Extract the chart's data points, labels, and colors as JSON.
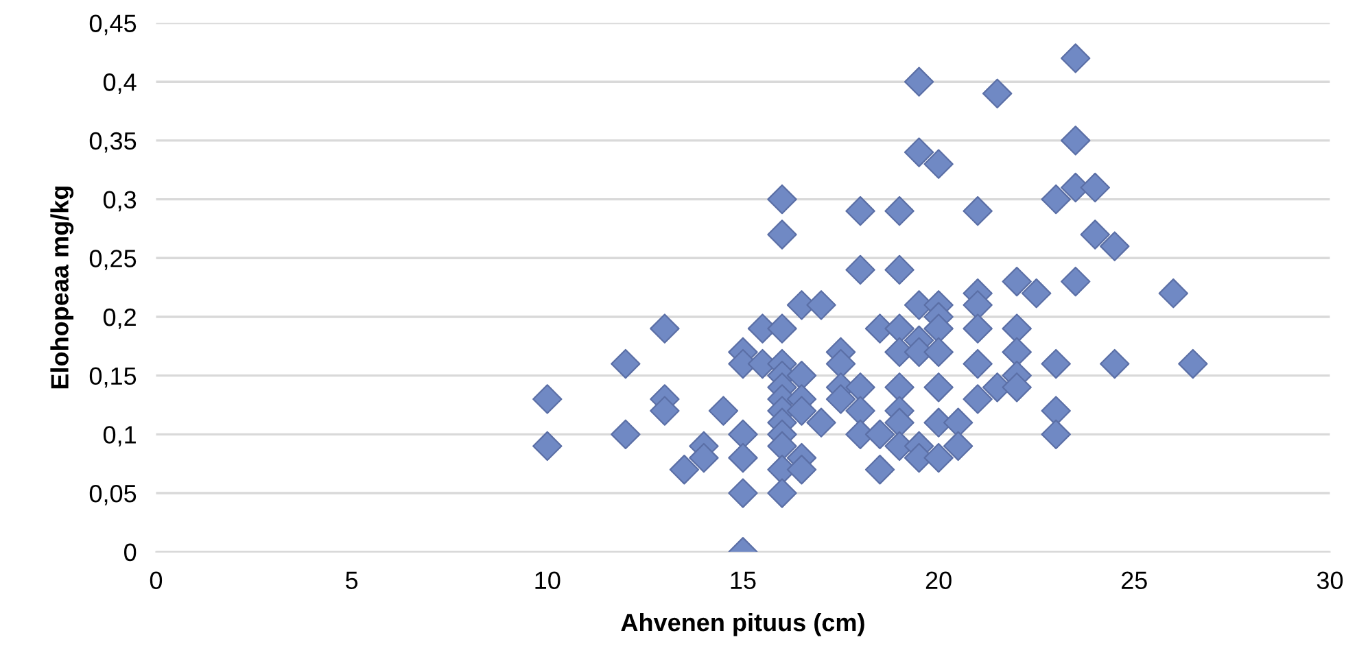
{
  "chart_data": {
    "type": "scatter",
    "xlabel": "Ahvenen pituus (cm)",
    "ylabel": "Elohopeaa mg/kg",
    "series": [
      {
        "color": "#7089c4",
        "x": [
          10,
          10,
          12,
          12,
          13,
          13,
          13,
          13.5,
          14,
          14,
          14.5,
          15,
          15,
          15,
          15,
          15,
          15,
          15.5,
          15.5,
          16,
          16,
          16,
          16,
          16,
          16,
          16,
          16,
          16,
          16,
          16,
          16,
          16,
          16.5,
          16.5,
          16.5,
          16.5,
          16.5,
          16.5,
          17,
          17,
          17.5,
          17.5,
          17.5,
          17.5,
          18,
          18,
          18,
          18,
          18,
          18.5,
          18.5,
          18.5,
          19,
          19,
          19,
          19,
          19,
          19,
          19,
          19,
          19.5,
          19.5,
          19.5,
          19.5,
          19.5,
          19.5,
          19.5,
          20,
          20,
          20,
          20,
          20,
          20,
          20,
          20,
          20.5,
          20.5,
          21,
          21,
          21,
          21,
          21,
          21,
          21.5,
          21.5,
          22,
          22,
          22,
          22,
          22,
          22.5,
          23,
          23,
          23,
          23,
          23.5,
          23.5,
          23.5,
          23.5,
          24,
          24,
          24.5,
          24.5,
          26,
          26.5
        ],
        "values": [
          0.13,
          0.09,
          0.16,
          0.1,
          0.19,
          0.13,
          0.12,
          0.07,
          0.09,
          0.08,
          0.12,
          0.17,
          0.16,
          0.1,
          0.08,
          0.05,
          0.0,
          0.19,
          0.16,
          0.3,
          0.27,
          0.19,
          0.16,
          0.15,
          0.14,
          0.13,
          0.12,
          0.11,
          0.1,
          0.09,
          0.07,
          0.05,
          0.21,
          0.15,
          0.13,
          0.12,
          0.08,
          0.07,
          0.21,
          0.11,
          0.17,
          0.16,
          0.14,
          0.13,
          0.29,
          0.24,
          0.14,
          0.12,
          0.1,
          0.19,
          0.1,
          0.07,
          0.29,
          0.24,
          0.19,
          0.17,
          0.14,
          0.12,
          0.11,
          0.09,
          0.4,
          0.34,
          0.21,
          0.18,
          0.17,
          0.09,
          0.08,
          0.33,
          0.21,
          0.2,
          0.19,
          0.17,
          0.14,
          0.11,
          0.08,
          0.11,
          0.09,
          0.29,
          0.22,
          0.21,
          0.19,
          0.16,
          0.13,
          0.39,
          0.14,
          0.23,
          0.19,
          0.17,
          0.15,
          0.14,
          0.22,
          0.3,
          0.16,
          0.12,
          0.1,
          0.42,
          0.35,
          0.31,
          0.23,
          0.31,
          0.27,
          0.26,
          0.16,
          0.22,
          0.16
        ]
      }
    ],
    "marker": "diamond",
    "grid": "y",
    "xlim": [
      0,
      30
    ],
    "xticks": [
      0,
      5,
      10,
      15,
      20,
      25,
      30
    ],
    "ylim": [
      0,
      0.45
    ],
    "yticks": [
      {
        "value": 0,
        "label": "0"
      },
      {
        "value": 0.05,
        "label": "0,05"
      },
      {
        "value": 0.1,
        "label": "0,1"
      },
      {
        "value": 0.15,
        "label": "0,15"
      },
      {
        "value": 0.2,
        "label": "0,2"
      },
      {
        "value": 0.25,
        "label": "0,25"
      },
      {
        "value": 0.3,
        "label": "0,3"
      },
      {
        "value": 0.35,
        "label": "0,35"
      },
      {
        "value": 0.4,
        "label": "0,4"
      },
      {
        "value": 0.45,
        "label": "0,45"
      }
    ]
  }
}
